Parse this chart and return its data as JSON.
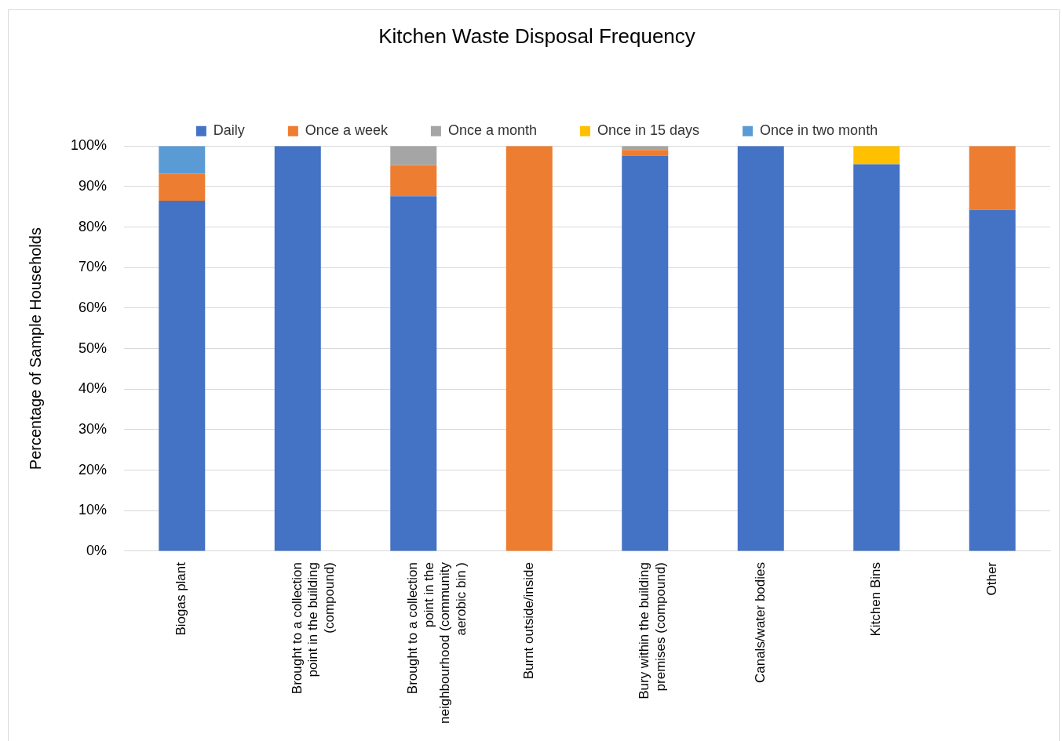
{
  "chart_data": {
    "type": "bar",
    "title": "Kitchen Waste Disposal Frequency",
    "ylabel": "Percentage of Sample Households",
    "categories": [
      "Biogas plant",
      "Brought to a collection point in the building (compound)",
      "Brought to a collection point in the neighbourhood (community aerobic bin )",
      "Burnt outside/inside",
      "Bury within the building premises (compound)",
      "Canals/water bodies",
      "Kitchen Bins",
      "Other"
    ],
    "series": [
      {
        "name": "Daily",
        "color": "#4472c4",
        "values": [
          86.5,
          100,
          87.6,
          null,
          97.6,
          100,
          95.5,
          84.2
        ]
      },
      {
        "name": "Once a week",
        "color": "#ed7d31",
        "values": [
          6.7,
          null,
          7.7,
          100,
          1.4,
          null,
          null,
          15.8
        ]
      },
      {
        "name": "Once a month",
        "color": "#a5a5a5",
        "values": [
          null,
          null,
          4.7,
          null,
          1.0,
          null,
          null,
          null
        ]
      },
      {
        "name": "Once in 15 days",
        "color": "#ffc000",
        "values": [
          null,
          null,
          null,
          null,
          null,
          null,
          4.5,
          null
        ]
      },
      {
        "name": "Once in two month",
        "color": "#5b9bd5",
        "values": [
          6.8,
          null,
          null,
          null,
          null,
          null,
          null,
          null
        ]
      }
    ],
    "stacked": true,
    "ylim": [
      0,
      100
    ],
    "yticks": [
      {
        "value": 0,
        "label": "0%"
      },
      {
        "value": 10,
        "label": "10%"
      },
      {
        "value": 20,
        "label": "20%"
      },
      {
        "value": 30,
        "label": "30%"
      },
      {
        "value": 40,
        "label": "40%"
      },
      {
        "value": 50,
        "label": "50%"
      },
      {
        "value": 60,
        "label": "60%"
      },
      {
        "value": 70,
        "label": "70%"
      },
      {
        "value": 80,
        "label": "80%"
      },
      {
        "value": 90,
        "label": "90%"
      },
      {
        "value": 100,
        "label": "100%"
      }
    ],
    "grid": "y",
    "legend": "top"
  }
}
